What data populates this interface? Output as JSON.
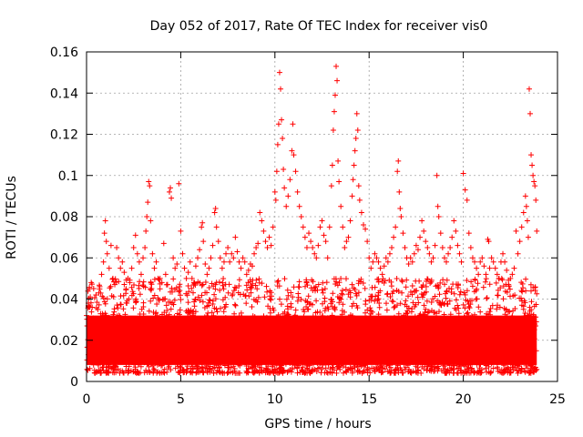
{
  "chart_data": {
    "type": "scatter",
    "title": "Day 052 of 2017, Rate Of TEC Index for receiver vis0",
    "xlabel": "GPS time / hours",
    "ylabel": "ROTI / TECUs",
    "xlim": [
      0,
      25
    ],
    "ylim": [
      0,
      0.16
    ],
    "xticks": [
      0,
      5,
      10,
      15,
      20,
      25
    ],
    "yticks": [
      0,
      0.02,
      0.04,
      0.06,
      0.08,
      0.1,
      0.12,
      0.14,
      0.16
    ],
    "xtick_labels": [
      "0",
      "5",
      "10",
      "15",
      "20",
      "25"
    ],
    "ytick_labels": [
      "0",
      "0.02",
      "0.04",
      "0.06",
      "0.08",
      "0.1",
      "0.12",
      "0.14",
      "0.16"
    ],
    "grid": true,
    "marker": "+",
    "color": "#ff0000",
    "series": [
      {
        "name": "ROTI",
        "points": [
          [
            0.0,
            0.032
          ],
          [
            0.1,
            0.038
          ],
          [
            0.15,
            0.045
          ],
          [
            0.2,
            0.041
          ],
          [
            0.25,
            0.048
          ],
          [
            0.3,
            0.036
          ],
          [
            0.4,
            0.028
          ],
          [
            0.5,
            0.042
          ],
          [
            0.6,
            0.035
          ],
          [
            0.7,
            0.046
          ],
          [
            0.8,
            0.052
          ],
          [
            0.9,
            0.058
          ],
          [
            0.95,
            0.072
          ],
          [
            1.0,
            0.078
          ],
          [
            1.05,
            0.068
          ],
          [
            1.1,
            0.062
          ],
          [
            1.2,
            0.055
          ],
          [
            1.3,
            0.066
          ],
          [
            1.4,
            0.05
          ],
          [
            1.5,
            0.047
          ],
          [
            1.6,
            0.065
          ],
          [
            1.7,
            0.06
          ],
          [
            1.8,
            0.055
          ],
          [
            1.9,
            0.058
          ],
          [
            2.0,
            0.053
          ],
          [
            2.1,
            0.045
          ],
          [
            2.2,
            0.05
          ],
          [
            2.3,
            0.048
          ],
          [
            2.4,
            0.055
          ],
          [
            2.5,
            0.065
          ],
          [
            2.6,
            0.071
          ],
          [
            2.7,
            0.062
          ],
          [
            2.8,
            0.058
          ],
          [
            2.9,
            0.052
          ],
          [
            3.0,
            0.06
          ],
          [
            3.1,
            0.065
          ],
          [
            3.15,
            0.073
          ],
          [
            3.2,
            0.08
          ],
          [
            3.25,
            0.087
          ],
          [
            3.3,
            0.097
          ],
          [
            3.35,
            0.095
          ],
          [
            3.4,
            0.078
          ],
          [
            3.5,
            0.062
          ],
          [
            3.6,
            0.055
          ],
          [
            3.7,
            0.058
          ],
          [
            3.8,
            0.05
          ],
          [
            3.9,
            0.045
          ],
          [
            4.0,
            0.048
          ],
          [
            4.1,
            0.067
          ],
          [
            4.2,
            0.052
          ],
          [
            4.3,
            0.047
          ],
          [
            4.4,
            0.092
          ],
          [
            4.45,
            0.094
          ],
          [
            4.5,
            0.089
          ],
          [
            4.6,
            0.06
          ],
          [
            4.7,
            0.055
          ],
          [
            4.8,
            0.057
          ],
          [
            4.9,
            0.096
          ],
          [
            5.0,
            0.073
          ],
          [
            5.1,
            0.062
          ],
          [
            5.2,
            0.055
          ],
          [
            5.3,
            0.05
          ],
          [
            5.4,
            0.053
          ],
          [
            5.5,
            0.058
          ],
          [
            5.6,
            0.05
          ],
          [
            5.7,
            0.048
          ],
          [
            5.8,
            0.056
          ],
          [
            5.9,
            0.06
          ],
          [
            6.0,
            0.064
          ],
          [
            6.1,
            0.075
          ],
          [
            6.15,
            0.077
          ],
          [
            6.2,
            0.068
          ],
          [
            6.3,
            0.057
          ],
          [
            6.4,
            0.052
          ],
          [
            6.5,
            0.055
          ],
          [
            6.6,
            0.06
          ],
          [
            6.7,
            0.066
          ],
          [
            6.8,
            0.082
          ],
          [
            6.85,
            0.084
          ],
          [
            6.9,
            0.075
          ],
          [
            7.0,
            0.068
          ],
          [
            7.1,
            0.06
          ],
          [
            7.2,
            0.055
          ],
          [
            7.3,
            0.058
          ],
          [
            7.4,
            0.062
          ],
          [
            7.5,
            0.065
          ],
          [
            7.6,
            0.058
          ],
          [
            7.7,
            0.062
          ],
          [
            7.8,
            0.06
          ],
          [
            7.9,
            0.07
          ],
          [
            8.0,
            0.063
          ],
          [
            8.1,
            0.058
          ],
          [
            8.2,
            0.055
          ],
          [
            8.3,
            0.06
          ],
          [
            8.4,
            0.058
          ],
          [
            8.5,
            0.052
          ],
          [
            8.6,
            0.054
          ],
          [
            8.7,
            0.057
          ],
          [
            8.8,
            0.056
          ],
          [
            8.9,
            0.062
          ],
          [
            9.0,
            0.065
          ],
          [
            9.1,
            0.067
          ],
          [
            9.2,
            0.082
          ],
          [
            9.3,
            0.078
          ],
          [
            9.4,
            0.073
          ],
          [
            9.5,
            0.068
          ],
          [
            9.6,
            0.065
          ],
          [
            9.7,
            0.07
          ],
          [
            9.8,
            0.066
          ],
          [
            9.9,
            0.075
          ],
          [
            10.0,
            0.092
          ],
          [
            10.05,
            0.088
          ],
          [
            10.1,
            0.102
          ],
          [
            10.15,
            0.115
          ],
          [
            10.2,
            0.125
          ],
          [
            10.25,
            0.15
          ],
          [
            10.3,
            0.142
          ],
          [
            10.35,
            0.127
          ],
          [
            10.4,
            0.118
          ],
          [
            10.45,
            0.103
          ],
          [
            10.5,
            0.094
          ],
          [
            10.6,
            0.085
          ],
          [
            10.7,
            0.09
          ],
          [
            10.8,
            0.098
          ],
          [
            10.9,
            0.112
          ],
          [
            10.95,
            0.125
          ],
          [
            11.0,
            0.11
          ],
          [
            11.1,
            0.102
          ],
          [
            11.2,
            0.092
          ],
          [
            11.3,
            0.085
          ],
          [
            11.4,
            0.08
          ],
          [
            11.5,
            0.075
          ],
          [
            11.6,
            0.07
          ],
          [
            11.7,
            0.065
          ],
          [
            11.8,
            0.072
          ],
          [
            11.9,
            0.068
          ],
          [
            12.0,
            0.065
          ],
          [
            12.1,
            0.062
          ],
          [
            12.2,
            0.06
          ],
          [
            12.3,
            0.066
          ],
          [
            12.4,
            0.075
          ],
          [
            12.5,
            0.078
          ],
          [
            12.6,
            0.071
          ],
          [
            12.7,
            0.068
          ],
          [
            12.8,
            0.06
          ],
          [
            12.9,
            0.075
          ],
          [
            13.0,
            0.095
          ],
          [
            13.05,
            0.105
          ],
          [
            13.1,
            0.122
          ],
          [
            13.15,
            0.131
          ],
          [
            13.2,
            0.139
          ],
          [
            13.25,
            0.153
          ],
          [
            13.3,
            0.146
          ],
          [
            13.35,
            0.107
          ],
          [
            13.4,
            0.097
          ],
          [
            13.5,
            0.085
          ],
          [
            13.6,
            0.075
          ],
          [
            13.7,
            0.065
          ],
          [
            13.8,
            0.068
          ],
          [
            13.9,
            0.07
          ],
          [
            14.0,
            0.078
          ],
          [
            14.1,
            0.09
          ],
          [
            14.15,
            0.098
          ],
          [
            14.2,
            0.105
          ],
          [
            14.25,
            0.112
          ],
          [
            14.3,
            0.118
          ],
          [
            14.35,
            0.13
          ],
          [
            14.4,
            0.122
          ],
          [
            14.45,
            0.095
          ],
          [
            14.5,
            0.088
          ],
          [
            14.6,
            0.082
          ],
          [
            14.7,
            0.076
          ],
          [
            14.8,
            0.074
          ],
          [
            14.9,
            0.068
          ],
          [
            15.0,
            0.06
          ],
          [
            15.1,
            0.055
          ],
          [
            15.2,
            0.058
          ],
          [
            15.3,
            0.062
          ],
          [
            15.4,
            0.06
          ],
          [
            15.5,
            0.058
          ],
          [
            15.6,
            0.055
          ],
          [
            15.7,
            0.052
          ],
          [
            15.8,
            0.056
          ],
          [
            15.9,
            0.06
          ],
          [
            16.0,
            0.058
          ],
          [
            16.1,
            0.062
          ],
          [
            16.2,
            0.065
          ],
          [
            16.3,
            0.07
          ],
          [
            16.4,
            0.075
          ],
          [
            16.5,
            0.102
          ],
          [
            16.55,
            0.107
          ],
          [
            16.6,
            0.092
          ],
          [
            16.65,
            0.084
          ],
          [
            16.7,
            0.08
          ],
          [
            16.8,
            0.072
          ],
          [
            16.9,
            0.065
          ],
          [
            17.0,
            0.06
          ],
          [
            17.1,
            0.057
          ],
          [
            17.2,
            0.06
          ],
          [
            17.3,
            0.058
          ],
          [
            17.4,
            0.062
          ],
          [
            17.5,
            0.066
          ],
          [
            17.6,
            0.064
          ],
          [
            17.7,
            0.07
          ],
          [
            17.8,
            0.078
          ],
          [
            17.9,
            0.073
          ],
          [
            18.0,
            0.068
          ],
          [
            18.1,
            0.065
          ],
          [
            18.2,
            0.062
          ],
          [
            18.3,
            0.058
          ],
          [
            18.4,
            0.06
          ],
          [
            18.5,
            0.066
          ],
          [
            18.6,
            0.1
          ],
          [
            18.65,
            0.085
          ],
          [
            18.7,
            0.08
          ],
          [
            18.8,
            0.072
          ],
          [
            18.9,
            0.065
          ],
          [
            19.0,
            0.06
          ],
          [
            19.1,
            0.058
          ],
          [
            19.2,
            0.062
          ],
          [
            19.3,
            0.065
          ],
          [
            19.4,
            0.07
          ],
          [
            19.5,
            0.078
          ],
          [
            19.6,
            0.073
          ],
          [
            19.7,
            0.066
          ],
          [
            19.8,
            0.062
          ],
          [
            19.9,
            0.058
          ],
          [
            20.0,
            0.101
          ],
          [
            20.1,
            0.093
          ],
          [
            20.2,
            0.088
          ],
          [
            20.3,
            0.072
          ],
          [
            20.4,
            0.065
          ],
          [
            20.5,
            0.06
          ],
          [
            20.6,
            0.058
          ],
          [
            20.7,
            0.055
          ],
          [
            20.8,
            0.052
          ],
          [
            20.9,
            0.058
          ],
          [
            21.0,
            0.06
          ],
          [
            21.1,
            0.056
          ],
          [
            21.2,
            0.052
          ],
          [
            21.3,
            0.069
          ],
          [
            21.35,
            0.068
          ],
          [
            21.4,
            0.055
          ],
          [
            21.5,
            0.06
          ],
          [
            21.6,
            0.058
          ],
          [
            21.7,
            0.055
          ],
          [
            21.8,
            0.052
          ],
          [
            21.9,
            0.05
          ],
          [
            22.0,
            0.058
          ],
          [
            22.1,
            0.062
          ],
          [
            22.2,
            0.058
          ],
          [
            22.3,
            0.054
          ],
          [
            22.4,
            0.047
          ],
          [
            22.5,
            0.05
          ],
          [
            22.6,
            0.052
          ],
          [
            22.7,
            0.055
          ],
          [
            22.8,
            0.073
          ],
          [
            22.9,
            0.062
          ],
          [
            23.0,
            0.068
          ],
          [
            23.1,
            0.075
          ],
          [
            23.2,
            0.082
          ],
          [
            23.3,
            0.09
          ],
          [
            23.35,
            0.085
          ],
          [
            23.4,
            0.078
          ],
          [
            23.45,
            0.07
          ],
          [
            23.5,
            0.142
          ],
          [
            23.55,
            0.13
          ],
          [
            23.6,
            0.11
          ],
          [
            23.65,
            0.105
          ],
          [
            23.7,
            0.1
          ],
          [
            23.75,
            0.097
          ],
          [
            23.8,
            0.095
          ],
          [
            23.85,
            0.088
          ],
          [
            23.9,
            0.073
          ]
        ]
      }
    ]
  }
}
